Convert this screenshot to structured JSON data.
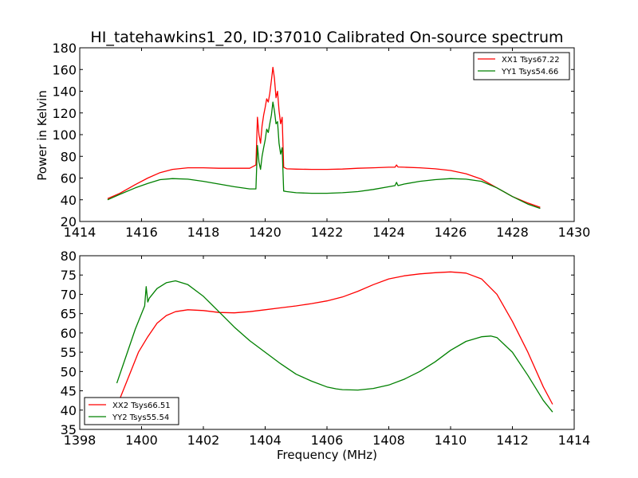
{
  "chart_data": [
    {
      "type": "line",
      "title": "HI_tatehawkins1_20, ID:37010 Calibrated On-source spectrum",
      "xlabel": "",
      "ylabel": "Power in Kelvin",
      "xlim": [
        1414,
        1430
      ],
      "ylim": [
        20,
        180
      ],
      "xticks": [
        1414,
        1416,
        1418,
        1420,
        1422,
        1424,
        1426,
        1428,
        1430
      ],
      "yticks": [
        20,
        40,
        60,
        80,
        100,
        120,
        140,
        160,
        180
      ],
      "grid": false,
      "legend_position": "top-right",
      "series": [
        {
          "name": "XX1 Tsys67.22",
          "color": "#ff0000",
          "x": [
            1414.9,
            1415.3,
            1415.8,
            1416.2,
            1416.6,
            1417.0,
            1417.5,
            1418.0,
            1418.5,
            1419.0,
            1419.5,
            1419.7,
            1419.75,
            1419.8,
            1419.85,
            1419.9,
            1419.95,
            1420.0,
            1420.05,
            1420.1,
            1420.15,
            1420.2,
            1420.25,
            1420.3,
            1420.35,
            1420.4,
            1420.45,
            1420.5,
            1420.55,
            1420.6,
            1420.7,
            1421.0,
            1421.5,
            1422.0,
            1422.5,
            1423.0,
            1423.5,
            1424.0,
            1424.2,
            1424.25,
            1424.3,
            1424.5,
            1425.0,
            1425.5,
            1426.0,
            1426.5,
            1427.0,
            1427.5,
            1428.0,
            1428.5,
            1428.9
          ],
          "y": [
            41,
            46,
            54,
            60,
            65,
            68,
            69.5,
            69.5,
            69,
            69,
            69,
            72,
            116,
            100,
            92,
            108,
            118,
            125,
            133,
            130,
            138,
            150,
            162,
            152,
            134,
            140,
            122,
            110,
            116,
            70,
            68.5,
            68.2,
            68,
            68,
            68.3,
            69,
            69.5,
            70,
            70,
            72,
            70.2,
            70,
            69.5,
            68.5,
            67,
            64,
            59,
            51,
            43,
            37,
            33
          ]
        },
        {
          "name": "YY1 Tsys54.66",
          "color": "#008000",
          "x": [
            1414.9,
            1415.3,
            1415.8,
            1416.2,
            1416.6,
            1417.0,
            1417.5,
            1418.0,
            1418.5,
            1419.0,
            1419.5,
            1419.7,
            1419.75,
            1419.8,
            1419.85,
            1419.9,
            1419.95,
            1420.0,
            1420.05,
            1420.1,
            1420.15,
            1420.2,
            1420.25,
            1420.3,
            1420.35,
            1420.4,
            1420.45,
            1420.5,
            1420.55,
            1420.6,
            1420.7,
            1421.0,
            1421.5,
            1422.0,
            1422.5,
            1423.0,
            1423.5,
            1424.0,
            1424.2,
            1424.25,
            1424.3,
            1424.5,
            1425.0,
            1425.5,
            1426.0,
            1426.5,
            1427.0,
            1427.5,
            1428.0,
            1428.5,
            1428.9
          ],
          "y": [
            40,
            45,
            51,
            55,
            58.5,
            59.5,
            59,
            57,
            54.5,
            52,
            50,
            50,
            90,
            75,
            68,
            80,
            88,
            95,
            105,
            102,
            110,
            118,
            130,
            122,
            110,
            112,
            92,
            82,
            88,
            48,
            47.5,
            46.5,
            46,
            46,
            46.5,
            47.5,
            49.5,
            52,
            53,
            56,
            53,
            54.5,
            57,
            58.5,
            59.5,
            59,
            57,
            51,
            43,
            36,
            32
          ]
        }
      ]
    },
    {
      "type": "line",
      "title": "",
      "xlabel": "Frequency (MHz)",
      "ylabel": "",
      "xlim": [
        1398,
        1414
      ],
      "ylim": [
        35,
        80
      ],
      "xticks": [
        1398,
        1400,
        1402,
        1404,
        1406,
        1408,
        1410,
        1412,
        1414
      ],
      "yticks": [
        35,
        40,
        45,
        50,
        55,
        60,
        65,
        70,
        75,
        80
      ],
      "grid": false,
      "legend_position": "bottom-left",
      "series": [
        {
          "name": "XX2 Tsys66.51",
          "color": "#ff0000",
          "x": [
            1399.3,
            1399.6,
            1399.9,
            1400.2,
            1400.5,
            1400.8,
            1401.1,
            1401.5,
            1402.0,
            1402.5,
            1403.0,
            1403.5,
            1404.0,
            1404.5,
            1405.0,
            1405.5,
            1406.0,
            1406.5,
            1407.0,
            1407.5,
            1408.0,
            1408.5,
            1409.0,
            1409.5,
            1410.0,
            1410.5,
            1411.0,
            1411.5,
            1412.0,
            1412.5,
            1413.0,
            1413.3
          ],
          "y": [
            43,
            49,
            55,
            59,
            62.5,
            64.5,
            65.5,
            66,
            65.8,
            65.3,
            65.2,
            65.5,
            66,
            66.5,
            67,
            67.6,
            68.3,
            69.3,
            70.8,
            72.5,
            74,
            74.8,
            75.3,
            75.6,
            75.8,
            75.5,
            74,
            70,
            63,
            55,
            46,
            41.5
          ]
        },
        {
          "name": "YY2 Tsys55.54",
          "color": "#008000",
          "x": [
            1399.2,
            1399.5,
            1399.8,
            1400.1,
            1400.15,
            1400.2,
            1400.25,
            1400.5,
            1400.8,
            1401.1,
            1401.5,
            1402.0,
            1402.5,
            1403.0,
            1403.5,
            1404.0,
            1404.5,
            1405.0,
            1405.5,
            1406.0,
            1406.3,
            1406.5,
            1407.0,
            1407.5,
            1408.0,
            1408.5,
            1409.0,
            1409.5,
            1410.0,
            1410.5,
            1411.0,
            1411.3,
            1411.5,
            1412.0,
            1412.5,
            1413.0,
            1413.3
          ],
          "y": [
            47,
            54,
            61,
            67,
            72,
            68,
            69,
            71.5,
            73,
            73.5,
            72.5,
            69.5,
            65.5,
            61.5,
            58,
            55,
            52,
            49.3,
            47.5,
            46,
            45.5,
            45.3,
            45.2,
            45.6,
            46.5,
            48,
            50,
            52.5,
            55.5,
            57.8,
            59,
            59.2,
            58.8,
            55,
            49,
            42.5,
            39.5
          ]
        }
      ]
    }
  ]
}
